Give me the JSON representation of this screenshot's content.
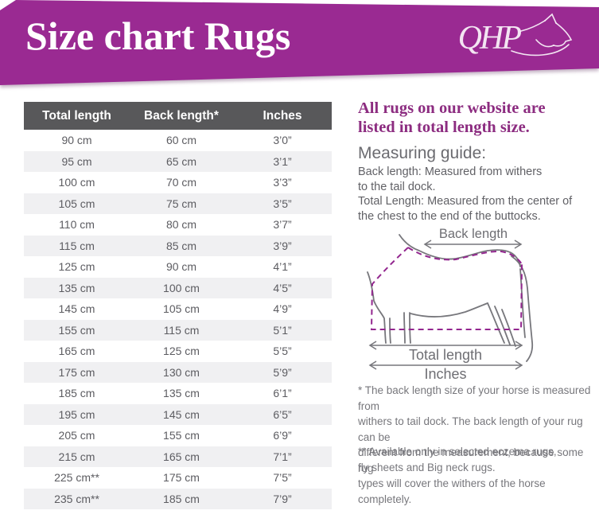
{
  "header": {
    "title": "Size chart Rugs",
    "brand": "QHP",
    "banner_color": "#9a2a92"
  },
  "table": {
    "columns": [
      "Total length",
      "Back length*",
      "Inches"
    ],
    "rows": [
      [
        "90 cm",
        "60 cm",
        "3’0”"
      ],
      [
        "95 cm",
        "65 cm",
        "3’1”"
      ],
      [
        "100 cm",
        "70 cm",
        "3’3”"
      ],
      [
        "105 cm",
        "75 cm",
        "3’5”"
      ],
      [
        "110 cm",
        "80 cm",
        "3’7”"
      ],
      [
        "115 cm",
        "85 cm",
        "3’9”"
      ],
      [
        "125 cm",
        "90 cm",
        "4’1”"
      ],
      [
        "135 cm",
        "100 cm",
        "4’5”"
      ],
      [
        "145 cm",
        "105 cm",
        "4’9”"
      ],
      [
        "155 cm",
        "115 cm",
        "5’1”"
      ],
      [
        "165 cm",
        "125 cm",
        "5’5”"
      ],
      [
        "175 cm",
        "130 cm",
        "5’9”"
      ],
      [
        "185 cm",
        "135 cm",
        "6’1”"
      ],
      [
        "195 cm",
        "145 cm",
        "6’5”"
      ],
      [
        "205 cm",
        "155 cm",
        "6’9”"
      ],
      [
        "215 cm",
        "165 cm",
        "7’1”"
      ],
      [
        "225 cm**",
        "175 cm",
        "7’5”"
      ],
      [
        "235 cm**",
        "185 cm",
        "7’9”"
      ]
    ]
  },
  "sidebar": {
    "intro_line1": "All rugs on our website are",
    "intro_line2": "listed in total length size.",
    "guide_heading": "Measuring guide:",
    "guide_text": "Back length: Measured from withers\nto the tail dock.\nTotal Length: Measured from the center of\nthe chest to the end of the buttocks.",
    "diagram": {
      "back_length_label": "Back length",
      "total_length_label": "Total length",
      "inches_label": "Inches",
      "rug_outline_color": "#93278f",
      "horse_line_color": "#77777c"
    },
    "footnote_back_length": "* The back length size of your horse is measured from\nwithers to tail dock. The back length of your rug can be\ndifferent from the measurement, because some rug\ntypes will cover the withers of the horse completely.",
    "footnote_availability": "** Available only in selected eczema rugs,\nfly sheets and Big neck rugs."
  }
}
